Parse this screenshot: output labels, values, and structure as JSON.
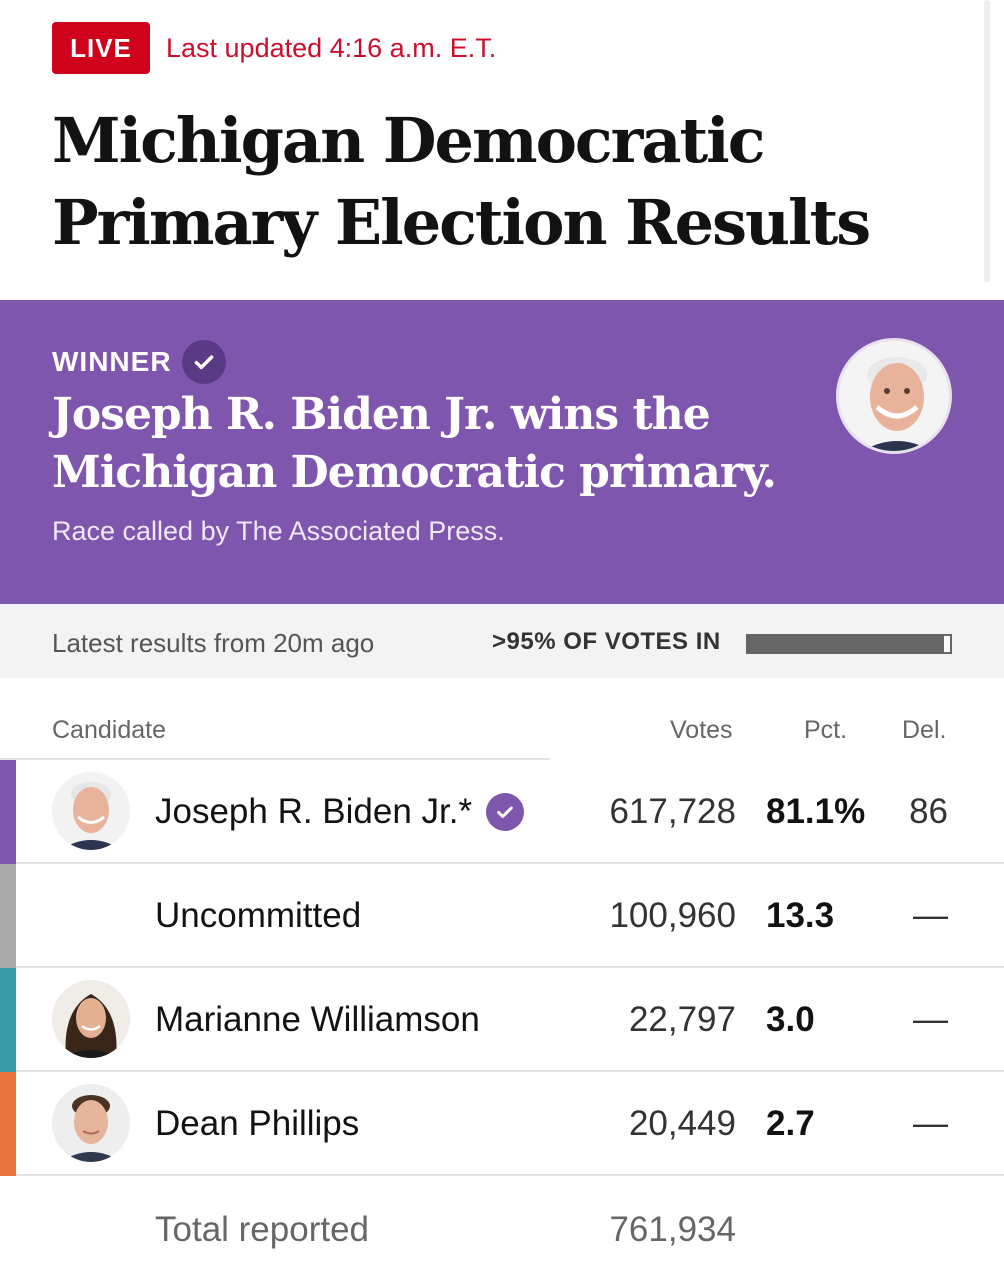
{
  "header": {
    "live_label": "LIVE",
    "updated": "Last updated 4:16 a.m. E.T.",
    "title_line1": "Michigan Democratic",
    "title_line2": "Primary Election Results"
  },
  "winner": {
    "label": "WINNER",
    "title_line1": "Joseph R. Biden Jr. wins the",
    "title_line2": "Michigan Democratic primary.",
    "subtitle": "Race called by The Associated Press."
  },
  "status": {
    "latest": "Latest results from 20m ago",
    "votes_in": ">95% OF VOTES IN",
    "reporting_fraction": 0.97
  },
  "table": {
    "headers": {
      "candidate": "Candidate",
      "votes": "Votes",
      "pct": "Pct.",
      "del": "Del."
    },
    "rows": [
      {
        "name": "Joseph R. Biden Jr.*",
        "votes": "617,728",
        "pct": "81.1%",
        "del": "86",
        "color": "#7f56ad",
        "winner": true
      },
      {
        "name": "Uncommitted",
        "votes": "100,960",
        "pct": "13.3",
        "del": "—",
        "color": "#aaaaaa",
        "winner": false
      },
      {
        "name": "Marianne Williamson",
        "votes": "22,797",
        "pct": "3.0",
        "del": "—",
        "color": "#3a9ba8",
        "winner": false
      },
      {
        "name": "Dean Phillips",
        "votes": "20,449",
        "pct": "2.7",
        "del": "—",
        "color": "#e8733f",
        "winner": false
      }
    ],
    "total_label": "Total reported",
    "total_votes": "761,934"
  },
  "colors": {
    "live_red": "#d0021b",
    "winner_purple": "#7f56ad"
  },
  "icons": {
    "winner_check": "check-circle-icon",
    "row_check": "check-circle-icon"
  }
}
